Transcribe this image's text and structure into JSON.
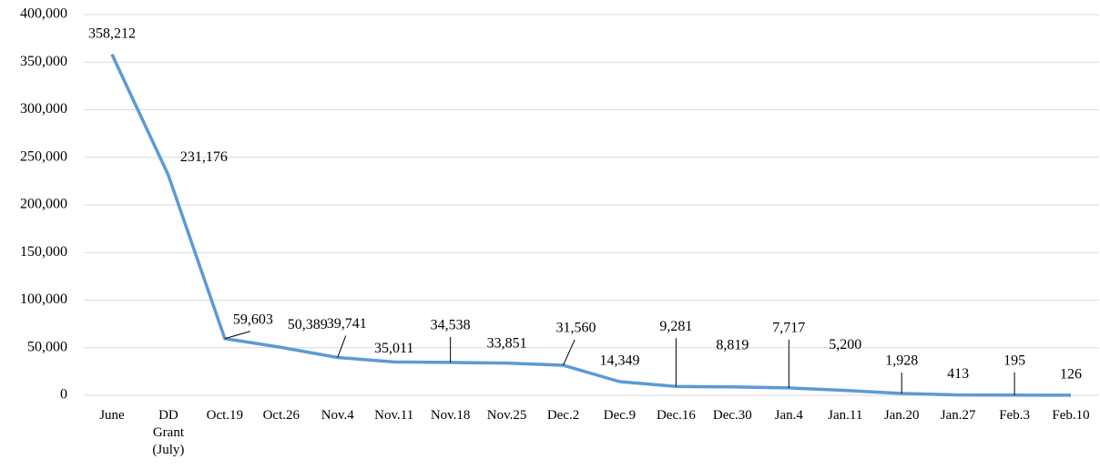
{
  "chart_data": {
    "type": "line",
    "categories": [
      "June",
      "DD Grant (July)",
      "Oct.19",
      "Oct.26",
      "Nov.4",
      "Nov.11",
      "Nov.18",
      "Nov.25",
      "Dec.2",
      "Dec.9",
      "Dec.16",
      "Dec.30",
      "Jan.4",
      "Jan.11",
      "Jan.20",
      "Jan.27",
      "Feb.3",
      "Feb.10"
    ],
    "series": [
      {
        "color": "#5b9bd5",
        "values": [
          358212,
          231176,
          59603,
          50389,
          39741,
          35011,
          34538,
          33851,
          31560,
          14349,
          9281,
          8819,
          7717,
          5200,
          1928,
          413,
          195,
          126
        ],
        "value_labels": [
          "358,212",
          "231,176",
          "59,603",
          "50,389",
          "39,741",
          "35,011",
          "34,538",
          "33,851",
          "31,560",
          "14,349",
          "9,281",
          "8,819",
          "7,717",
          "5,200",
          "1,928",
          "413",
          "195",
          "126"
        ]
      }
    ],
    "ylim": [
      0,
      400000
    ],
    "yticks": [
      0,
      {
        "value": 50000,
        "label": "50,000"
      },
      {
        "value": 100000,
        "label": "100,000"
      },
      {
        "value": 150000,
        "label": "150,000"
      },
      {
        "value": 200000,
        "label": "200,000"
      },
      {
        "value": 250000,
        "label": "250,000"
      },
      {
        "value": 300000,
        "label": "300,000"
      },
      {
        "value": 350000,
        "label": "350,000"
      },
      {
        "value": 400000,
        "label": "400,000"
      }
    ],
    "grid": true
  }
}
